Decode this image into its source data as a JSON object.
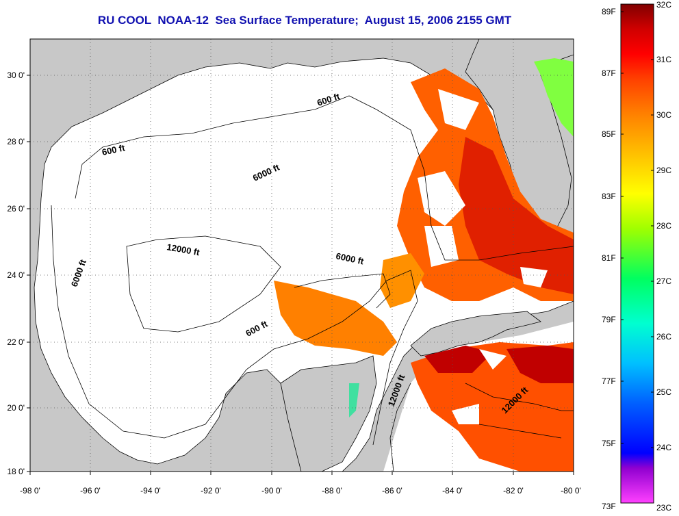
{
  "title": "RU COOL  NOAA-12  Sea Surface Temperature;  August 15, 2006 2155 GMT",
  "map": {
    "x_ticks": [
      "-98 0'",
      "-96 0'",
      "-94 0'",
      "-92 0'",
      "-90 0'",
      "-88 0'",
      "-86 0'",
      "-84 0'",
      "-82 0'",
      "-80 0'"
    ],
    "y_ticks": [
      "30 0'",
      "28 0'",
      "26 0'",
      "24 0'",
      "22 0'",
      "20 0'",
      "18 0'"
    ],
    "contour_labels": {
      "c600_nw": "600 ft",
      "c600_ne": "600 ft",
      "c600_s": "600 ft",
      "c6000_n": "6000 ft",
      "c6000_w": "6000 ft",
      "c6000_e": "6000 ft",
      "c12000_c": "12000 ft",
      "c12000_yuc": "12000 ft",
      "c12000_car": "12000 ft"
    },
    "colors": {
      "land": "#c8c8c8",
      "water": "#ffffff",
      "grid": "#555555"
    }
  },
  "colorbar": {
    "fahrenheit_labels": [
      "89F",
      "87F",
      "85F",
      "83F",
      "81F",
      "79F",
      "77F",
      "75F",
      "73F"
    ],
    "celsius_labels": [
      "32C",
      "31C",
      "30C",
      "29C",
      "28C",
      "27C",
      "26C",
      "25C",
      "24C",
      "23C"
    ],
    "gradient": [
      "#ff40ff",
      "#9000d0",
      "#0000ff",
      "#0060ff",
      "#00c0ff",
      "#00ffd0",
      "#00ff60",
      "#a0ff00",
      "#ffff00",
      "#ffc000",
      "#ff8000",
      "#ff4000",
      "#ff0000",
      "#d00000",
      "#800000"
    ]
  }
}
